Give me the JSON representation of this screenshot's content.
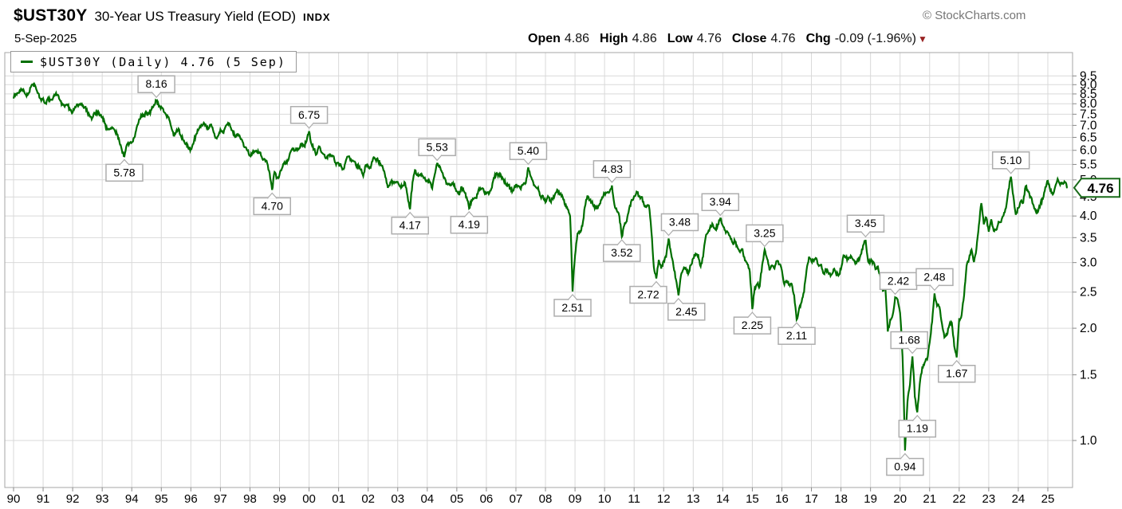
{
  "header": {
    "symbol": "$UST30Y",
    "name": "30-Year US Treasury Yield (EOD)",
    "exchange": "INDX",
    "date": "5-Sep-2025",
    "copyright": "© StockCharts.com",
    "quote": {
      "open_label": "Open",
      "open": "4.86",
      "high_label": "High",
      "high": "4.86",
      "low_label": "Low",
      "low": "4.76",
      "close_label": "Close",
      "close": "4.76",
      "chg_label": "Chg",
      "chg": "-0.09 (-1.96%)",
      "direction": "down"
    }
  },
  "legend": {
    "text": "$UST30Y (Daily) 4.76 (5 Sep)",
    "line_color": "#006f00"
  },
  "chart_data": {
    "type": "line",
    "title": "$UST30Y 30-Year US Treasury Yield (EOD) INDX",
    "y_scale": "log",
    "grid": true,
    "line_color": "#006f00",
    "grid_color": "#d9d9d9",
    "border_color": "#a6a6a6",
    "tick_color": "#8a8a8a",
    "y_ticks": [
      9.5,
      9.0,
      8.5,
      8.0,
      7.5,
      7.0,
      6.5,
      6.0,
      5.5,
      5.0,
      4.5,
      4.0,
      3.5,
      3.0,
      2.5,
      2.0,
      1.5,
      1.0
    ],
    "x_start_year": 1990,
    "x_step_months": 1,
    "x_tick_labels": [
      "90",
      "91",
      "92",
      "93",
      "94",
      "95",
      "96",
      "97",
      "98",
      "99",
      "00",
      "01",
      "02",
      "03",
      "04",
      "05",
      "06",
      "07",
      "08",
      "09",
      "10",
      "11",
      "12",
      "13",
      "14",
      "15",
      "16",
      "17",
      "18",
      "19",
      "20",
      "21",
      "22",
      "23",
      "24",
      "25"
    ],
    "last_price": {
      "label": "4.76",
      "value": 4.76,
      "box_color": "#1a6b1a"
    },
    "values": [
      8.26,
      8.5,
      8.56,
      8.76,
      8.73,
      8.46,
      8.5,
      8.86,
      9.03,
      8.86,
      8.54,
      8.24,
      8.27,
      8.03,
      8.29,
      8.21,
      8.27,
      8.47,
      8.45,
      8.14,
      7.95,
      7.93,
      7.92,
      7.7,
      7.58,
      7.85,
      7.97,
      7.96,
      7.89,
      7.84,
      7.6,
      7.39,
      7.34,
      7.53,
      7.61,
      7.44,
      7.34,
      7.09,
      6.82,
      6.85,
      6.92,
      6.81,
      6.63,
      6.32,
      6.0,
      5.78,
      6.21,
      6.25,
      6.29,
      6.49,
      6.91,
      7.27,
      7.41,
      7.4,
      7.58,
      7.49,
      7.71,
      7.94,
      8.16,
      7.87,
      7.85,
      7.61,
      7.45,
      7.36,
      6.95,
      6.57,
      6.72,
      6.86,
      6.55,
      6.37,
      6.26,
      6.06,
      6.05,
      6.24,
      6.6,
      6.79,
      6.93,
      7.06,
      7.03,
      6.84,
      7.03,
      6.81,
      6.48,
      6.55,
      6.83,
      6.69,
      6.93,
      7.09,
      6.94,
      6.77,
      6.51,
      6.58,
      6.5,
      6.33,
      6.11,
      5.99,
      5.81,
      5.89,
      5.95,
      5.92,
      5.93,
      5.7,
      5.68,
      5.54,
      5.2,
      4.7,
      5.25,
      5.06,
      5.16,
      5.37,
      5.58,
      5.55,
      5.81,
      6.04,
      5.98,
      6.07,
      6.07,
      6.26,
      6.15,
      6.35,
      6.75,
      6.23,
      6.05,
      5.85,
      6.15,
      5.93,
      5.85,
      5.72,
      5.83,
      5.8,
      5.78,
      5.49,
      5.54,
      5.45,
      5.34,
      5.65,
      5.78,
      5.67,
      5.61,
      5.48,
      5.48,
      5.32,
      5.12,
      5.48,
      5.45,
      5.39,
      5.71,
      5.67,
      5.64,
      5.52,
      5.38,
      5.08,
      4.76,
      4.93,
      4.95,
      4.92,
      4.94,
      4.81,
      4.82,
      4.91,
      4.52,
      4.17,
      4.93,
      5.31,
      5.14,
      5.16,
      5.13,
      5.07,
      4.96,
      4.94,
      4.74,
      5.16,
      5.53,
      5.45,
      5.24,
      5.07,
      4.89,
      4.85,
      4.89,
      4.86,
      4.66,
      4.55,
      4.78,
      4.65,
      4.49,
      4.19,
      4.41,
      4.46,
      4.47,
      4.74,
      4.73,
      4.66,
      4.59,
      4.58,
      4.73,
      5.06,
      5.2,
      5.16,
      5.13,
      5.0,
      4.85,
      4.85,
      4.69,
      4.68,
      4.85,
      4.82,
      4.72,
      4.87,
      4.9,
      5.4,
      5.11,
      4.93,
      4.79,
      4.77,
      4.52,
      4.53,
      4.35,
      4.52,
      4.39,
      4.44,
      4.6,
      4.69,
      4.57,
      4.5,
      4.27,
      4.17,
      4.0,
      2.51,
      3.13,
      3.59,
      3.64,
      3.76,
      4.23,
      4.52,
      4.41,
      4.37,
      4.19,
      4.19,
      4.31,
      4.49,
      4.6,
      4.62,
      4.64,
      4.83,
      4.29,
      4.13,
      3.99,
      3.52,
      3.77,
      3.87,
      4.19,
      4.42,
      4.52,
      4.65,
      4.51,
      4.5,
      4.29,
      4.23,
      4.27,
      3.65,
      2.92,
      2.72,
      3.05,
      2.89,
      3.03,
      3.11,
      3.48,
      3.18,
      2.93,
      2.7,
      2.45,
      2.77,
      2.88,
      2.9,
      2.8,
      2.95,
      3.08,
      3.17,
      3.16,
      2.93,
      3.11,
      3.5,
      3.61,
      3.76,
      3.79,
      3.68,
      3.8,
      3.94,
      3.77,
      3.66,
      3.62,
      3.52,
      3.39,
      3.42,
      3.29,
      3.2,
      3.26,
      3.04,
      2.97,
      2.83,
      2.25,
      2.57,
      2.63,
      2.59,
      2.96,
      3.25,
      3.07,
      2.86,
      2.95,
      2.89,
      3.03,
      2.97,
      2.86,
      2.62,
      2.68,
      2.62,
      2.63,
      2.45,
      2.11,
      2.26,
      2.35,
      2.5,
      2.86,
      3.11,
      3.02,
      3.03,
      3.08,
      2.94,
      2.96,
      2.8,
      2.88,
      2.8,
      2.78,
      2.88,
      2.8,
      2.77,
      2.88,
      3.13,
      3.09,
      3.07,
      3.13,
      3.05,
      3.01,
      3.04,
      3.15,
      3.34,
      3.45,
      3.02,
      3.03,
      3.02,
      2.88,
      2.93,
      2.75,
      2.52,
      2.58,
      1.96,
      2.11,
      2.17,
      2.42,
      2.39,
      2.2,
      1.68,
      0.94,
      1.27,
      1.41,
      1.68,
      1.31,
      1.19,
      1.42,
      1.57,
      1.62,
      1.65,
      1.83,
      2.08,
      2.48,
      2.3,
      2.28,
      2.06,
      1.89,
      1.92,
      2.04,
      2.07,
      1.79,
      1.67,
      2.11,
      2.17,
      2.45,
      2.94,
      3.07,
      3.25,
      3.01,
      3.26,
      3.78,
      4.33,
      3.8,
      3.96,
      3.63,
      3.92,
      3.65,
      3.67,
      3.86,
      3.85,
      4.01,
      4.2,
      4.7,
      5.1,
      4.52,
      4.03,
      4.2,
      4.38,
      4.34,
      4.81,
      4.65,
      4.51,
      4.3,
      4.13,
      4.1,
      4.3,
      4.45,
      4.78,
      4.97,
      4.68,
      4.57,
      4.8,
      5.03,
      4.85,
      4.9,
      4.93,
      4.76
    ],
    "annotations": [
      {
        "label": "5.78",
        "x": 1993.75,
        "v": 5.78,
        "dir": "below"
      },
      {
        "label": "8.16",
        "x": 1994.833,
        "v": 8.16,
        "dir": "above"
      },
      {
        "label": "4.70",
        "x": 1998.75,
        "v": 4.7,
        "dir": "below"
      },
      {
        "label": "6.75",
        "x": 2000.0,
        "v": 6.75,
        "dir": "above"
      },
      {
        "label": "4.17",
        "x": 2003.417,
        "v": 4.17,
        "dir": "below"
      },
      {
        "label": "5.53",
        "x": 2004.333,
        "v": 5.53,
        "dir": "above"
      },
      {
        "label": "4.19",
        "x": 2005.417,
        "v": 4.19,
        "dir": "below"
      },
      {
        "label": "5.40",
        "x": 2007.417,
        "v": 5.4,
        "dir": "above"
      },
      {
        "label": "2.51",
        "x": 2008.917,
        "v": 2.51,
        "dir": "below"
      },
      {
        "label": "4.83",
        "x": 2010.25,
        "v": 4.83,
        "dir": "above"
      },
      {
        "label": "3.52",
        "x": 2010.583,
        "v": 3.52,
        "dir": "below"
      },
      {
        "label": "2.72",
        "x": 2011.75,
        "v": 2.72,
        "dir": "below",
        "dx": -10
      },
      {
        "label": "3.48",
        "x": 2012.167,
        "v": 3.48,
        "dir": "above",
        "dx": 14
      },
      {
        "label": "2.45",
        "x": 2012.5,
        "v": 2.45,
        "dir": "below",
        "dx": 10
      },
      {
        "label": "3.94",
        "x": 2013.917,
        "v": 3.94,
        "dir": "above"
      },
      {
        "label": "2.25",
        "x": 2015.0,
        "v": 2.25,
        "dir": "below"
      },
      {
        "label": "3.25",
        "x": 2015.417,
        "v": 3.25,
        "dir": "above"
      },
      {
        "label": "2.11",
        "x": 2016.5,
        "v": 2.11,
        "dir": "below"
      },
      {
        "label": "3.45",
        "x": 2018.833,
        "v": 3.45,
        "dir": "above"
      },
      {
        "label": "2.42",
        "x": 2019.833,
        "v": 2.42,
        "dir": "above",
        "dx": 4
      },
      {
        "label": "0.94",
        "x": 2020.167,
        "v": 0.94,
        "dir": "below"
      },
      {
        "label": "1.68",
        "x": 2020.417,
        "v": 1.68,
        "dir": "above",
        "dx": -4
      },
      {
        "label": "1.19",
        "x": 2020.583,
        "v": 1.19,
        "dir": "below"
      },
      {
        "label": "2.48",
        "x": 2021.167,
        "v": 2.48,
        "dir": "above"
      },
      {
        "label": "1.67",
        "x": 2021.917,
        "v": 1.67,
        "dir": "below"
      },
      {
        "label": "5.10",
        "x": 2023.75,
        "v": 5.1,
        "dir": "above"
      }
    ]
  }
}
